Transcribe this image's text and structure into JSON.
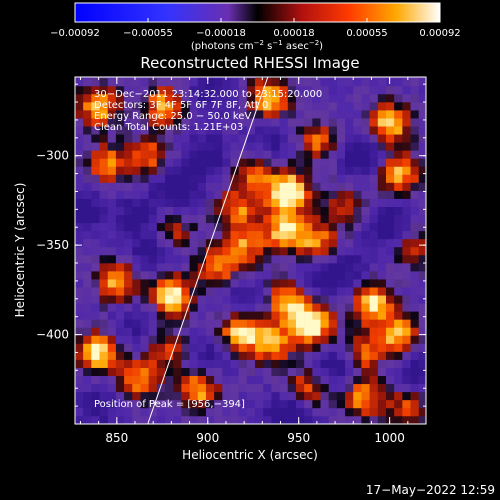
{
  "chart_data": {
    "type": "heatmap",
    "title": "Reconstructed RHESSI Image",
    "xlabel": "Heliocentric X (arcsec)",
    "ylabel": "Heliocentric Y (arcsec)",
    "xlim": [
      827,
      1020
    ],
    "ylim": [
      -450,
      -256
    ],
    "x_ticks": [
      850,
      900,
      950,
      1000
    ],
    "y_ticks": [
      -300,
      -350,
      -400
    ],
    "x_tick_labels": [
      "850",
      "900",
      "950",
      "1000"
    ],
    "y_tick_labels": [
      "−300",
      "−350",
      "−400"
    ],
    "colorbar": {
      "range": [
        -0.00092,
        0.00092
      ],
      "tick_labels": [
        "−0.00092",
        "−0.00055",
        "−0.00018",
        "0.00018",
        "0.00055",
        "0.00092"
      ],
      "units_line1": "(photons cm",
      "units_exp1": "−2",
      "units_mid1": " s",
      "units_exp2": "−1",
      "units_mid2": " asec",
      "units_exp3": "−2",
      "units_end": ")"
    },
    "annotations": [
      "30−Dec−2011 23:14:32.000 to 23:15:20.000",
      "Detectors: 3F 4F 5F 6F 7F 8F, Att 0",
      "Energy Range: 25.0 − 50.0 keV",
      "Clean     Total Counts: 1.21E+03"
    ],
    "peak_label": "Position of Peak = [956,−394]",
    "peak": [
      956,
      -394
    ],
    "limb_line": [
      [
        867,
        -450
      ],
      [
        933,
        -256
      ]
    ],
    "hotspots": [
      {
        "x": 840,
        "y": -272,
        "v": 0.7
      },
      {
        "x": 876,
        "y": -272,
        "v": 0.65
      },
      {
        "x": 934,
        "y": -268,
        "v": 0.8
      },
      {
        "x": 1000,
        "y": -282,
        "v": 0.75
      },
      {
        "x": 1005,
        "y": -310,
        "v": 0.7
      },
      {
        "x": 960,
        "y": -292,
        "v": 0.5
      },
      {
        "x": 845,
        "y": -305,
        "v": 0.6
      },
      {
        "x": 868,
        "y": -300,
        "v": 0.55
      },
      {
        "x": 916,
        "y": -330,
        "v": 0.55
      },
      {
        "x": 925,
        "y": -310,
        "v": 0.5
      },
      {
        "x": 944,
        "y": -320,
        "v": 1.0
      },
      {
        "x": 960,
        "y": -348,
        "v": 0.6
      },
      {
        "x": 942,
        "y": -342,
        "v": 0.7
      },
      {
        "x": 880,
        "y": -342,
        "v": 0.45
      },
      {
        "x": 850,
        "y": -370,
        "v": 0.7
      },
      {
        "x": 880,
        "y": -378,
        "v": 0.85
      },
      {
        "x": 906,
        "y": -362,
        "v": 0.6
      },
      {
        "x": 920,
        "y": -350,
        "v": 0.55
      },
      {
        "x": 957,
        "y": -394,
        "v": 1.0
      },
      {
        "x": 944,
        "y": -380,
        "v": 0.75
      },
      {
        "x": 918,
        "y": -398,
        "v": 0.8
      },
      {
        "x": 935,
        "y": -405,
        "v": 0.65
      },
      {
        "x": 990,
        "y": -382,
        "v": 0.8
      },
      {
        "x": 1005,
        "y": -400,
        "v": 0.7
      },
      {
        "x": 985,
        "y": -410,
        "v": 0.55
      },
      {
        "x": 840,
        "y": -410,
        "v": 0.8
      },
      {
        "x": 862,
        "y": -425,
        "v": 0.6
      },
      {
        "x": 895,
        "y": -430,
        "v": 0.7
      },
      {
        "x": 955,
        "y": -430,
        "v": 0.55
      },
      {
        "x": 985,
        "y": -435,
        "v": 0.6
      },
      {
        "x": 1010,
        "y": -440,
        "v": 0.5
      },
      {
        "x": 878,
        "y": -408,
        "v": 0.45
      },
      {
        "x": 1012,
        "y": -350,
        "v": 0.45
      },
      {
        "x": 975,
        "y": -328,
        "v": 0.4
      }
    ],
    "coldspots": [
      {
        "x": 830,
        "y": -330,
        "v": 0.7
      },
      {
        "x": 860,
        "y": -335,
        "v": 0.6
      },
      {
        "x": 883,
        "y": -318,
        "v": 0.8
      },
      {
        "x": 900,
        "y": -300,
        "v": 0.6
      },
      {
        "x": 935,
        "y": -290,
        "v": 0.5
      },
      {
        "x": 985,
        "y": -300,
        "v": 0.7
      },
      {
        "x": 1000,
        "y": -340,
        "v": 0.75
      },
      {
        "x": 975,
        "y": -365,
        "v": 0.6
      },
      {
        "x": 920,
        "y": -380,
        "v": 0.5
      },
      {
        "x": 970,
        "y": -418,
        "v": 0.7
      },
      {
        "x": 945,
        "y": -445,
        "v": 0.85
      },
      {
        "x": 900,
        "y": -412,
        "v": 0.55
      },
      {
        "x": 860,
        "y": -395,
        "v": 0.5
      },
      {
        "x": 840,
        "y": -440,
        "v": 0.5
      },
      {
        "x": 1015,
        "y": -420,
        "v": 0.6
      },
      {
        "x": 900,
        "y": -265,
        "v": 0.5
      },
      {
        "x": 955,
        "y": -370,
        "v": 0.45
      },
      {
        "x": 870,
        "y": -355,
        "v": 0.55
      }
    ]
  },
  "footer": {
    "timestamp": "17−May−2022 12:59"
  }
}
